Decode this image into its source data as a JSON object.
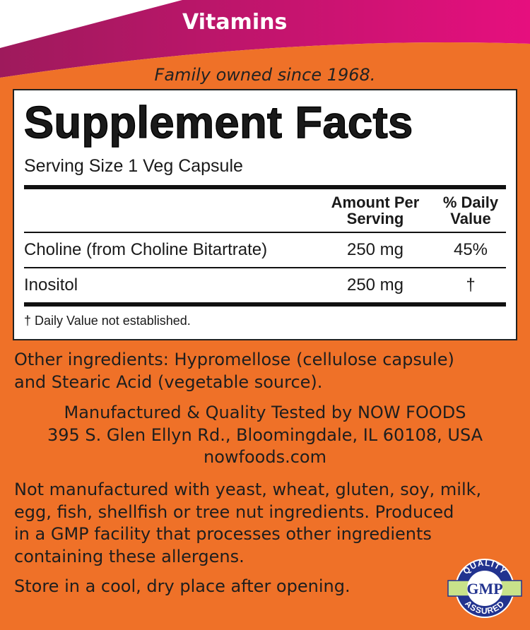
{
  "banner": {
    "category": "Vitamins",
    "tagline": "Family owned since 1968.",
    "colors": {
      "magenta": "#e20c7b",
      "purple": "#a5185e",
      "orange": "#ef7128"
    }
  },
  "facts": {
    "title": "Supplement Facts",
    "serving_size": "Serving Size 1 Veg Capsule",
    "headers": {
      "amount": "Amount Per Serving",
      "dv": "% Daily Value"
    },
    "rows": [
      {
        "name": "Choline (from Choline Bitartrate)",
        "amount": "250 mg",
        "dv": "45%"
      },
      {
        "name": "Inositol",
        "amount": "250 mg",
        "dv": "†"
      }
    ],
    "footnote": "† Daily Value not established."
  },
  "other_ingredients": [
    "Other ingredients: Hypromellose (cellulose capsule)",
    "and Stearic Acid (vegetable source)."
  ],
  "manufacturer": [
    "Manufactured & Quality Tested by NOW FOODS",
    "395 S. Glen Ellyn Rd., Bloomingdale, IL 60108, USA",
    "nowfoods.com"
  ],
  "allergens": [
    "Not manufactured with yeast, wheat, gluten, soy, milk,",
    "egg, fish, shellfish or tree nut ingredients. Produced",
    "in a GMP facility that processes other ingredients",
    "containing these allergens."
  ],
  "storage": "Store in a cool, dry place after opening.",
  "badge": {
    "top": "QUALITY",
    "center": "GMP",
    "bottom": "ASSURED"
  }
}
